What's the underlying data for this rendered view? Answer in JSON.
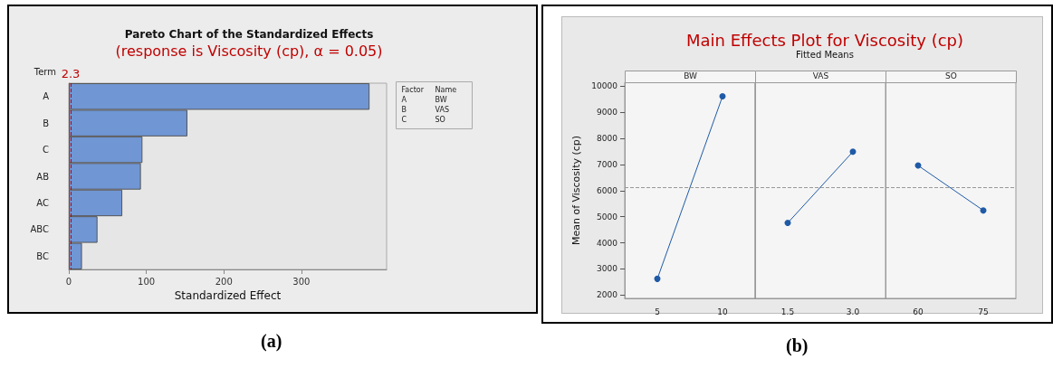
{
  "chart_data": [
    {
      "type": "bar",
      "orientation": "horizontal",
      "title": "Pareto Chart of the Standardized Effects",
      "subtitle": "(response is Viscosity (cp), α = 0.05)",
      "xlabel": "Standardized Effect",
      "ylabel": "Term",
      "categories": [
        "A",
        "B",
        "C",
        "AB",
        "AC",
        "ABC",
        "BC"
      ],
      "values": [
        388,
        153,
        95,
        93,
        69,
        37,
        17
      ],
      "color": "#7096d4",
      "xlim": [
        0,
        410
      ],
      "xticks": [
        0,
        100,
        200,
        300
      ],
      "ref_lines": [
        {
          "axis": "x",
          "value": 2.3,
          "label": "2.3",
          "color": "#c00000",
          "line_style": "dashed"
        }
      ],
      "grid": false,
      "annotations": [
        "Factor",
        "Name",
        "A",
        "BW",
        "B",
        "VAS",
        "C",
        "SO",
        "(a)"
      ]
    },
    {
      "type": "line",
      "xlabel": "BW",
      "ylabel": "Mean of Viscosity (cp)",
      "categories": [
        "5",
        "10"
      ],
      "series": [
        {
          "color": "#1f5aa6",
          "values": [
            2620,
            9610
          ]
        }
      ],
      "ylim": [
        1870,
        10150
      ],
      "yticks": [
        2000,
        3000,
        4000,
        5000,
        6000,
        7000,
        8000,
        9000,
        10000
      ],
      "marker": "circle",
      "ref_lines": [
        {
          "axis": "y",
          "value": 6110,
          "color": "#999999",
          "line_style": "dashed"
        }
      ],
      "grid": false
    },
    {
      "type": "line",
      "title": "Main Effects Plot for Viscosity (cp)",
      "subtitle": "Fitted Means",
      "annotations": [
        "(b)"
      ],
      "xlabel": "VAS",
      "categories": [
        "1.5",
        "3.0"
      ],
      "series": [
        {
          "color": "#1f5aa6",
          "values": [
            4760,
            7490
          ]
        }
      ],
      "ylim": [
        1870,
        10150
      ],
      "tick_labels": "x",
      "marker": "circle",
      "ref_lines": [
        {
          "axis": "y",
          "value": 6110,
          "color": "#999999",
          "line_style": "dashed"
        }
      ],
      "grid": false
    },
    {
      "type": "line",
      "xlabel": "SO",
      "categories": [
        "60",
        "75"
      ],
      "series": [
        {
          "color": "#1f5aa6",
          "values": [
            6960,
            5240
          ]
        }
      ],
      "ylim": [
        1870,
        10150
      ],
      "tick_labels": "x",
      "marker": "circle",
      "ref_lines": [
        {
          "axis": "y",
          "value": 6110,
          "color": "#999999",
          "line_style": "dashed"
        }
      ],
      "grid": false
    }
  ]
}
